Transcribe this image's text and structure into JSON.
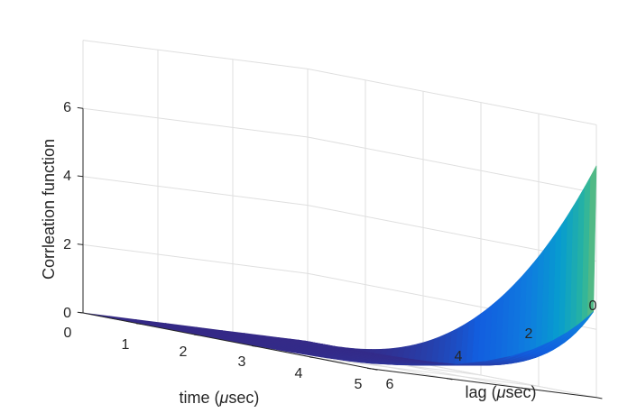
{
  "chart_data": {
    "type": "surface",
    "title": "",
    "xlabel_prefix": "time (",
    "xlabel_mu": "μ",
    "xlabel_suffix": "sec)",
    "ylabel_prefix": "lag (",
    "ylabel_mu": "μ",
    "ylabel_suffix": "sec)",
    "zlabel": "Corrleation function",
    "x_ticks": [
      "0",
      "1",
      "2",
      "3",
      "4",
      "5"
    ],
    "y_ticks": [
      "0",
      "2",
      "4",
      "6"
    ],
    "z_ticks": [
      "0",
      "2",
      "4",
      "6"
    ],
    "xlim": [
      0,
      5
    ],
    "ylim": [
      0,
      6
    ],
    "zlim": [
      0,
      6
    ],
    "grid": true,
    "colormap": "parula",
    "surface_description": "Correlation vs time and lag: at lag 0 the surface rises from ~0 at time 0 to ~6.8 at time 5 (wall); for lag > 0 it stays near 0 then rises steeply near time 5 (to ~1.8 at lag 2 and ~0 at lag 6).",
    "value_at_lag0_time5": 6.8,
    "value_at_lag2_time5": 1.8,
    "value_at_lag6_time5": 0.05
  }
}
